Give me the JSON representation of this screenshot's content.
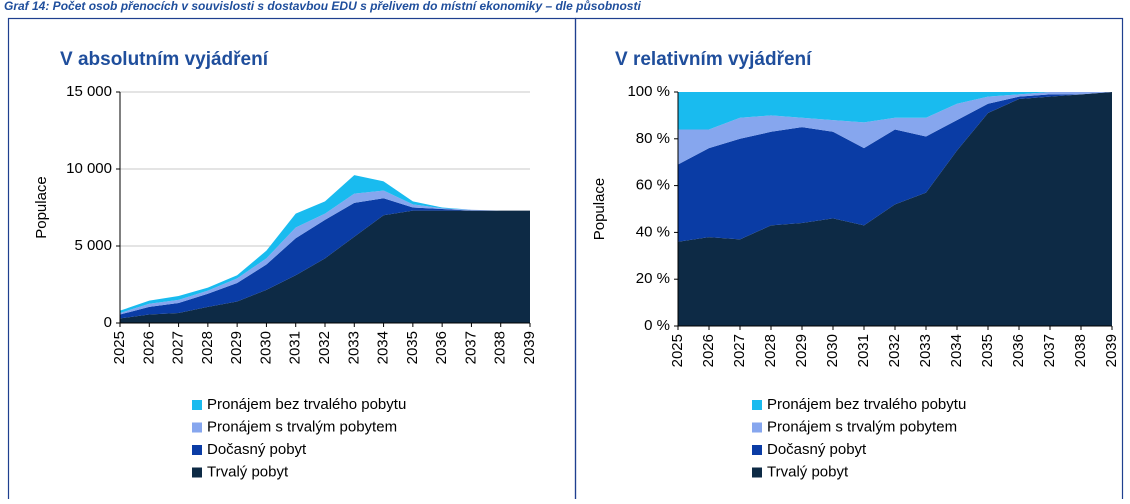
{
  "caption": "Graf 14: Počet osob přenocích v souvislosti s dostavbou EDU s přelivem do místní ekonomiky – dle působnosti",
  "chart_data": [
    {
      "type": "stacked_area",
      "title": "V absolutním vyjádření",
      "y_label": "Populace",
      "categories": [
        "2025",
        "2026",
        "2027",
        "2028",
        "2029",
        "2030",
        "2031",
        "2032",
        "2033",
        "2034",
        "2035",
        "2036",
        "2037",
        "2038",
        "2039"
      ],
      "series": [
        {
          "name": "Trvalý pobyt",
          "color": "#0d2a45",
          "values": [
            300,
            550,
            650,
            1050,
            1400,
            2150,
            3100,
            4200,
            5600,
            7000,
            7300,
            7300,
            7300,
            7300,
            7300
          ]
        },
        {
          "name": "Dočasný pobyt",
          "color": "#0a3ca5",
          "values": [
            250,
            500,
            650,
            850,
            1200,
            1650,
            2400,
            2500,
            2200,
            1100,
            200,
            100,
            0,
            0,
            0
          ]
        },
        {
          "name": "Pronájem s trvalým pobytem",
          "color": "#86a6ee",
          "values": [
            100,
            200,
            200,
            200,
            300,
            400,
            700,
            400,
            600,
            500,
            200,
            50,
            50,
            0,
            0
          ]
        },
        {
          "name": "Pronájem bez trvalého pobytu",
          "color": "#19bbef",
          "values": [
            150,
            200,
            250,
            200,
            200,
            500,
            900,
            800,
            1200,
            600,
            200,
            50,
            0,
            0,
            0
          ]
        }
      ],
      "ylim": [
        0,
        15000
      ],
      "yticks": [
        0,
        {
          "value": 5000,
          "label": "5 000"
        },
        {
          "value": 10000,
          "label": "10 000"
        },
        {
          "value": 15000,
          "label": "15 000"
        }
      ],
      "grid": true
    },
    {
      "type": "stacked_area",
      "title": "V relativním vyjádření",
      "y_label": "Populace",
      "categories": [
        "2025",
        "2026",
        "2027",
        "2028",
        "2029",
        "2030",
        "2031",
        "2032",
        "2033",
        "2034",
        "2035",
        "2036",
        "2037",
        "2038",
        "2039"
      ],
      "series": [
        {
          "name": "Trvalý pobyt",
          "color": "#0d2a45",
          "values": [
            36,
            38,
            37,
            43,
            44,
            46,
            43,
            52,
            57,
            75,
            91,
            97,
            98,
            99,
            100
          ]
        },
        {
          "name": "Dočasný pobyt",
          "color": "#0a3ca5",
          "values": [
            33,
            38,
            43,
            40,
            41,
            37,
            33,
            32,
            24,
            13,
            4,
            1,
            1,
            0,
            0
          ]
        },
        {
          "name": "Pronájem s trvalým pobytem",
          "color": "#86a6ee",
          "values": [
            15,
            8,
            9,
            7,
            4,
            5,
            11,
            5,
            8,
            7,
            3,
            1,
            1,
            1,
            0
          ]
        },
        {
          "name": "Pronájem bez trvalého pobytu",
          "color": "#19bbef",
          "values": [
            16,
            16,
            11,
            10,
            11,
            12,
            13,
            11,
            11,
            5,
            2,
            1,
            0,
            0,
            0
          ]
        }
      ],
      "ylim": [
        0,
        100
      ],
      "yticks": [
        {
          "value": 0,
          "label": "0 %"
        },
        {
          "value": 20,
          "label": "20 %"
        },
        {
          "value": 40,
          "label": "40 %"
        },
        {
          "value": 60,
          "label": "60 %"
        },
        {
          "value": 80,
          "label": "80 %"
        },
        {
          "value": 100,
          "label": "100 %"
        }
      ],
      "grid": false
    }
  ]
}
